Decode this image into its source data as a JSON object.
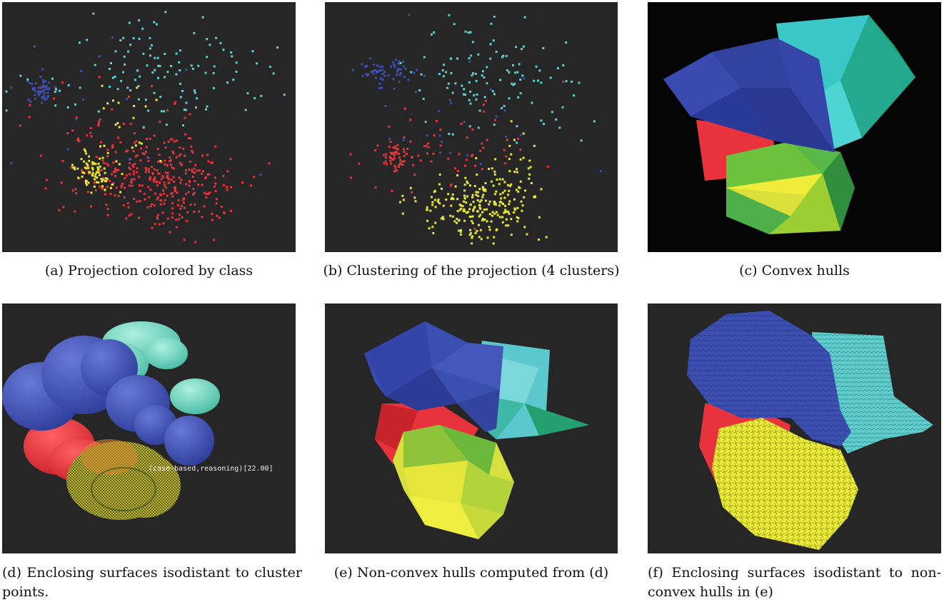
{
  "figure": {
    "panels": [
      {
        "id": "a",
        "caption": "(a)  Projection colored by class",
        "content": "scatter-class"
      },
      {
        "id": "b",
        "caption": "(b)  Clustering of the projection (4 clusters)",
        "content": "scatter-cluster"
      },
      {
        "id": "c",
        "caption": "(c)  Convex hulls",
        "content": "convex-hulls"
      },
      {
        "id": "d",
        "caption": "(d)  Enclosing surfaces isodistant to cluster points.",
        "content": "isosurfaces",
        "overlay_label": "(case-based,reasoning)[22.00]"
      },
      {
        "id": "e",
        "caption": "(e)  Non-convex hulls computed from (d)",
        "content": "nonconvex-hulls"
      },
      {
        "id": "f",
        "caption": "(f)  Enclosing surfaces isodistant to non-convex hulls in (e)",
        "content": "isosurfaces-nonconvex"
      }
    ],
    "colors": {
      "background_dark": "#262626",
      "background_black": "#050505",
      "red": "#e8323c",
      "yellow": "#e6e63a",
      "blue": "#3b4fb0",
      "cyan": "#5fd0d0",
      "green": "#2fb36c"
    }
  }
}
